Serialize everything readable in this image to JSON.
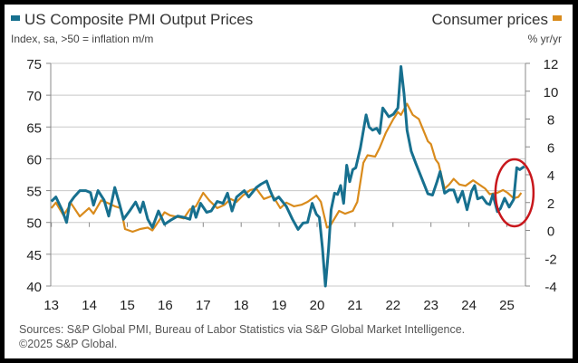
{
  "chart_data": {
    "type": "line",
    "title_left": "US Composite PMI Output Prices",
    "subtitle_left": "Index, sa, >50 = inflation m/m",
    "title_right": "Consumer prices",
    "subtitle_right": "% yr/yr",
    "source": "Sources: S&P Global PMI, Bureau of Labor Statistics via S&P Global Market Intelligence.",
    "copyright": "©2025 S&P Global.",
    "colors": {
      "pmi": "#17708f",
      "cpi": "#d98b1c",
      "annotation": "#c8171c",
      "grid": "#c8c8c8"
    },
    "x_ticks": [
      "13",
      "14",
      "15",
      "16",
      "17",
      "18",
      "19",
      "20",
      "21",
      "22",
      "23",
      "24",
      "25"
    ],
    "left_axis": {
      "ylim": [
        40,
        75
      ],
      "ticks": [
        "75",
        "70",
        "65",
        "60",
        "55",
        "50",
        "45",
        "40"
      ]
    },
    "right_axis": {
      "ylim": [
        -4,
        12
      ],
      "ticks": [
        "12",
        "10",
        "8",
        "6",
        "4",
        "2",
        "0",
        "-2",
        "-4"
      ]
    },
    "annotation": {
      "type": "ellipse",
      "around_year": 25.2
    },
    "series": [
      {
        "name": "US Composite PMI Output Prices",
        "axis": "left",
        "x": [
          13.0,
          13.12,
          13.28,
          13.4,
          13.48,
          13.6,
          13.75,
          13.91,
          14.03,
          14.11,
          14.23,
          14.39,
          14.51,
          14.67,
          14.79,
          14.9,
          15.06,
          15.22,
          15.34,
          15.42,
          15.54,
          15.66,
          15.82,
          15.98,
          16.13,
          16.33,
          16.49,
          16.65,
          16.73,
          16.81,
          16.93,
          17.09,
          17.21,
          17.37,
          17.52,
          17.64,
          17.76,
          17.88,
          18.08,
          18.2,
          18.4,
          18.52,
          18.67,
          18.75,
          18.87,
          18.99,
          19.19,
          19.35,
          19.5,
          19.63,
          19.75,
          19.87,
          19.98,
          20.06,
          20.14,
          20.22,
          20.3,
          20.37,
          20.46,
          20.54,
          20.62,
          20.7,
          20.78,
          20.86,
          20.94,
          21.02,
          21.14,
          21.29,
          21.37,
          21.46,
          21.57,
          21.65,
          21.73,
          21.89,
          22.01,
          22.13,
          22.21,
          22.29,
          22.37,
          22.48,
          22.6,
          22.76,
          22.92,
          23.04,
          23.16,
          23.24,
          23.36,
          23.48,
          23.6,
          23.71,
          23.83,
          23.95,
          24.07,
          24.15,
          24.23,
          24.35,
          24.47,
          24.55,
          24.63,
          24.75,
          24.83,
          24.94,
          25.06,
          25.18,
          25.26,
          25.34,
          25.46
        ],
        "values": [
          53.3,
          54,
          52,
          50,
          53,
          54,
          55,
          55,
          54.7,
          52.7,
          55,
          53.5,
          51,
          55.5,
          53,
          50.5,
          51.8,
          53.2,
          51.6,
          53.2,
          50.5,
          49.2,
          51.8,
          49.7,
          50.3,
          51,
          50.8,
          50.5,
          52.5,
          50.8,
          53,
          51.6,
          51.8,
          53.3,
          53,
          54.6,
          51.8,
          54,
          55,
          54,
          55.5,
          56,
          56.5,
          55.2,
          53.5,
          54,
          52.5,
          50.5,
          48.9,
          49.9,
          50,
          53,
          51.3,
          50.8,
          46,
          40,
          45.7,
          52,
          54.6,
          54.4,
          55.8,
          53,
          59,
          56.4,
          58.3,
          58.6,
          61.7,
          66.9,
          65,
          64.5,
          64.8,
          64,
          68,
          66.6,
          67,
          68,
          74.5,
          70.2,
          64.5,
          61.2,
          59.3,
          56.9,
          54.5,
          54.3,
          56.4,
          58,
          54.6,
          55.1,
          55.1,
          53.2,
          54.9,
          52,
          54.9,
          55.8,
          53.7,
          54,
          53,
          52.8,
          54.4,
          51.7,
          52.2,
          53.8,
          52.4,
          53.6,
          58.6,
          58.3,
          58.8
        ]
      },
      {
        "name": "Consumer prices",
        "axis": "right",
        "x": [
          13.0,
          13.12,
          13.32,
          13.52,
          13.75,
          13.99,
          14.11,
          14.31,
          14.51,
          14.67,
          14.83,
          14.94,
          15.14,
          15.34,
          15.54,
          15.66,
          15.82,
          15.98,
          16.13,
          16.33,
          16.49,
          16.65,
          16.81,
          17.0,
          17.16,
          17.37,
          17.56,
          17.72,
          17.88,
          18.04,
          18.24,
          18.4,
          18.6,
          18.83,
          19.03,
          19.19,
          19.39,
          19.59,
          19.75,
          19.98,
          20.1,
          20.26,
          20.34,
          20.58,
          20.74,
          20.94,
          21.06,
          21.22,
          21.33,
          21.53,
          21.65,
          21.81,
          22.01,
          22.13,
          22.21,
          22.37,
          22.52,
          22.68,
          22.8,
          22.92,
          23.0,
          23.12,
          23.2,
          23.36,
          23.48,
          23.6,
          23.75,
          23.91,
          24.11,
          24.27,
          24.43,
          24.55,
          24.75,
          24.9,
          25.02,
          25.18,
          25.3,
          25.38
        ],
        "values": [
          1.6,
          2.0,
          1.07,
          1.94,
          1.0,
          1.6,
          1.2,
          2.15,
          1.94,
          1.73,
          1.6,
          0.1,
          -0.1,
          0.1,
          0.2,
          0.0,
          0.64,
          1.3,
          1.07,
          0.96,
          0.86,
          1.5,
          1.73,
          2.7,
          2.15,
          1.6,
          1.84,
          2.26,
          2.05,
          2.5,
          2.9,
          3.0,
          2.26,
          2.5,
          1.6,
          2.0,
          1.73,
          1.84,
          2.05,
          2.5,
          2.05,
          0.2,
          0.3,
          1.4,
          1.2,
          1.4,
          2.05,
          4.86,
          5.4,
          5.3,
          5.94,
          7.0,
          8.0,
          8.5,
          8.3,
          9.1,
          8.3,
          8.0,
          7.2,
          6.4,
          6.2,
          5.1,
          4.8,
          3.0,
          3.3,
          3.7,
          3.3,
          3.2,
          3.6,
          3.3,
          3.0,
          2.6,
          2.7,
          2.9,
          2.7,
          2.3,
          2.4,
          2.7
        ]
      }
    ]
  }
}
